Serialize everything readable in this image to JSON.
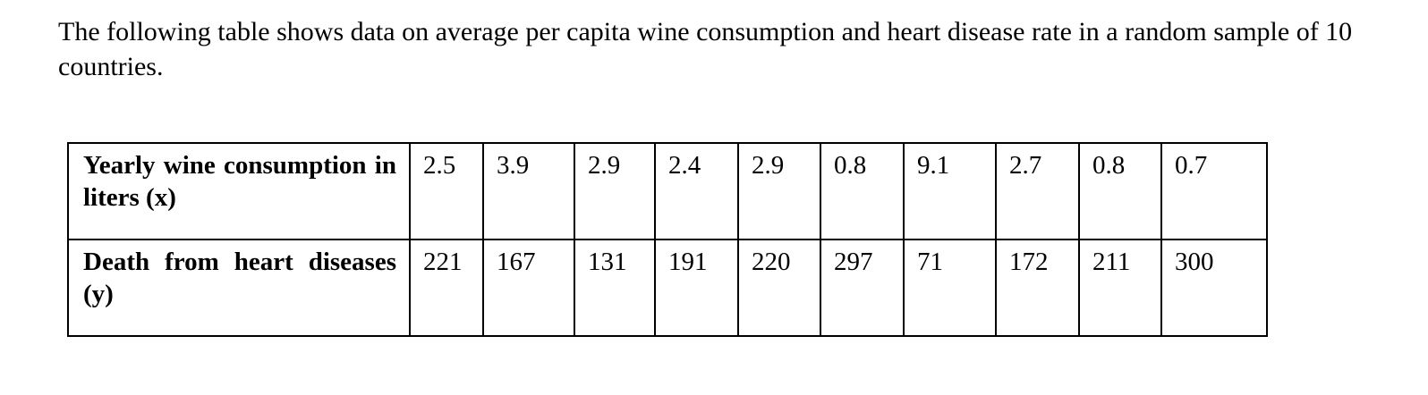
{
  "intro": "The following table shows data on average per capita wine consumption and heart disease rate in a random sample of 10 countries.",
  "table": {
    "rows": [
      {
        "label": "Yearly wine consumption in liters (x)",
        "values": [
          "2.5",
          "3.9",
          "2.9",
          "2.4",
          "2.9",
          "0.8",
          "9.1",
          "2.7",
          "0.8",
          "0.7"
        ]
      },
      {
        "label": "Death from heart diseases (y)",
        "values": [
          "221",
          "167",
          "131",
          "191",
          "220",
          "297",
          "71",
          "172",
          "211",
          "300"
        ]
      }
    ]
  }
}
